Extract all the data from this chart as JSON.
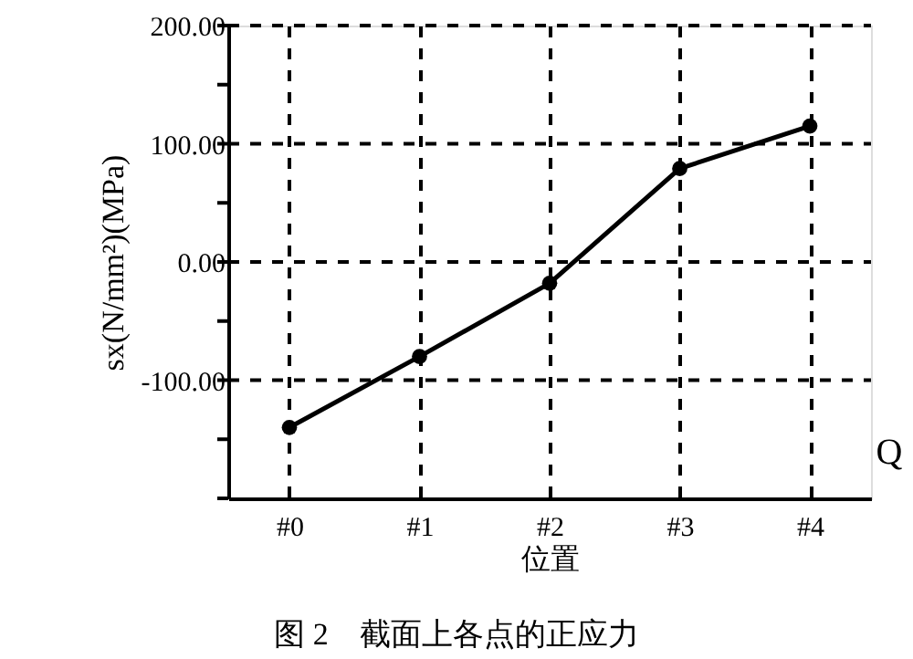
{
  "chart_data": {
    "type": "line",
    "xlabel": "位置",
    "ylabel": "sx(N/mm²)(MPa)",
    "categories": [
      "#0",
      "#1",
      "#2",
      "#3",
      "#4"
    ],
    "series": [
      {
        "color": "#000000",
        "values": [
          -140,
          -80,
          -18,
          79,
          115
        ]
      }
    ],
    "ylim": [
      -200,
      200
    ],
    "yticks": [
      {
        "value": -200,
        "label": null
      },
      {
        "value": -150,
        "label": null
      },
      {
        "value": -100,
        "label": "-100.00"
      },
      {
        "value": -50,
        "label": null
      },
      {
        "value": 0,
        "label": "0.00"
      },
      {
        "value": 50,
        "label": null
      },
      {
        "value": 100,
        "label": "100.00"
      },
      {
        "value": 150,
        "label": null
      },
      {
        "value": 200,
        "label": "200.00"
      }
    ],
    "grid": true,
    "marker": "circle",
    "line_style": "solid",
    "annotations": [
      "Q",
      "图 2　截面上各点的正应力"
    ]
  }
}
